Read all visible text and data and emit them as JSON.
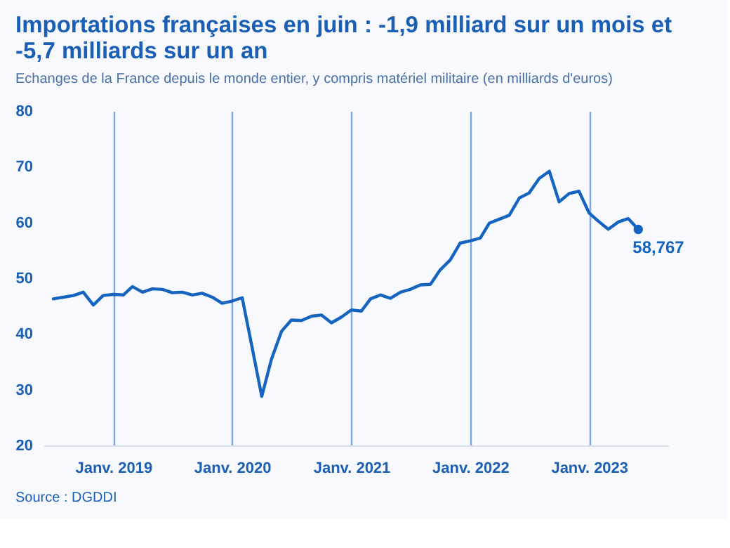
{
  "chart_data": {
    "type": "line",
    "title": "Importations françaises en juin : -1,9 milliard sur un mois et -5,7 milliards sur un an",
    "subtitle": "Echanges de la France depuis le monde entier, y compris matériel militaire (en milliards d'euros)",
    "x": [
      "2018-07",
      "2018-08",
      "2018-09",
      "2018-10",
      "2018-11",
      "2018-12",
      "2019-01",
      "2019-02",
      "2019-03",
      "2019-04",
      "2019-05",
      "2019-06",
      "2019-07",
      "2019-08",
      "2019-09",
      "2019-10",
      "2019-11",
      "2019-12",
      "2020-01",
      "2020-02",
      "2020-03",
      "2020-04",
      "2020-05",
      "2020-06",
      "2020-07",
      "2020-08",
      "2020-09",
      "2020-10",
      "2020-11",
      "2020-12",
      "2021-01",
      "2021-02",
      "2021-03",
      "2021-04",
      "2021-05",
      "2021-06",
      "2021-07",
      "2021-08",
      "2021-09",
      "2021-10",
      "2021-11",
      "2021-12",
      "2022-01",
      "2022-02",
      "2022-03",
      "2022-04",
      "2022-05",
      "2022-06",
      "2022-07",
      "2022-08",
      "2022-09",
      "2022-10",
      "2022-11",
      "2022-12",
      "2023-01",
      "2023-02",
      "2023-03",
      "2023-04",
      "2023-05",
      "2023-06"
    ],
    "series": [
      {
        "color": "#1565c0",
        "values": [
          46.3,
          46.6,
          46.9,
          47.5,
          45.2,
          46.9,
          47.1,
          47.0,
          48.5,
          47.5,
          48.1,
          48.0,
          47.4,
          47.5,
          47.0,
          47.3,
          46.6,
          45.5,
          45.9,
          46.5,
          38.0,
          28.8,
          35.5,
          40.5,
          42.5,
          42.4,
          43.2,
          43.4,
          42.0,
          43.0,
          44.3,
          44.1,
          46.3,
          47.0,
          46.4,
          47.5,
          48.0,
          48.8,
          48.9,
          51.5,
          53.3,
          56.3,
          56.7,
          57.2,
          59.9,
          60.6,
          61.3,
          64.4,
          65.3,
          67.9,
          69.2,
          63.7,
          65.2,
          65.6,
          61.7,
          60.1,
          58.8,
          60.1,
          60.7,
          58.767
        ]
      }
    ],
    "xlim": [
      "2018-06",
      "2023-09"
    ],
    "xticks": [
      {
        "value": "2019-01",
        "label": "Janv. 2019"
      },
      {
        "value": "2020-01",
        "label": "Janv. 2020"
      },
      {
        "value": "2021-01",
        "label": "Janv. 2021"
      },
      {
        "value": "2022-01",
        "label": "Janv. 2022"
      },
      {
        "value": "2023-01",
        "label": "Janv. 2023"
      }
    ],
    "ylim": [
      20,
      80
    ],
    "yticks": [
      20,
      30,
      40,
      50,
      60,
      70,
      80
    ],
    "grid": "x",
    "annotations": [
      {
        "text": "58,767",
        "x": "2023-06",
        "y": 58.767
      },
      "Source : DGDDI"
    ]
  }
}
